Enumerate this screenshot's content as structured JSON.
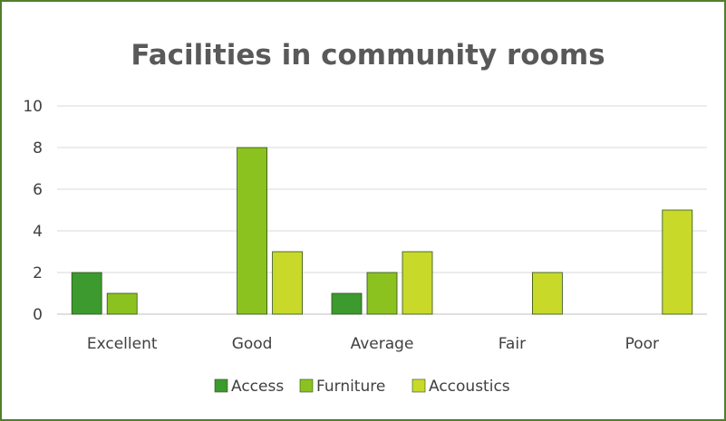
{
  "chart_data": {
    "type": "bar",
    "title": "Facilities in community rooms",
    "xlabel": "",
    "ylabel": "",
    "categories": [
      "Excellent",
      "Good",
      "Average",
      "Fair",
      "Poor"
    ],
    "series": [
      {
        "name": "Access",
        "values": [
          2,
          0,
          1,
          0,
          0
        ],
        "color": "#3c9a2e"
      },
      {
        "name": "Furniture",
        "values": [
          1,
          8,
          2,
          0,
          0
        ],
        "color": "#8cc21f"
      },
      {
        "name": "Accoustics",
        "values": [
          0,
          3,
          3,
          2,
          5
        ],
        "color": "#c8d92a"
      }
    ],
    "ylim": [
      0,
      10
    ],
    "yticks": [
      0,
      2,
      4,
      6,
      8,
      10
    ],
    "grid": true,
    "legend": "bottom"
  }
}
